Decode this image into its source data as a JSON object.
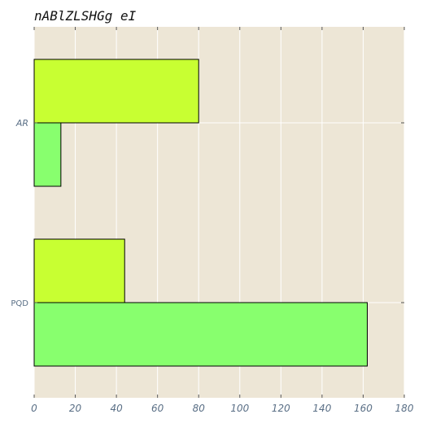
{
  "chart_data": {
    "type": "bar",
    "orientation": "horizontal",
    "title": "nABlZLSHGg eI",
    "categories": [
      "PQD",
      "AR"
    ],
    "series": [
      {
        "values": [
          162,
          13
        ],
        "color": "#88ff6e"
      },
      {
        "values": [
          44,
          80
        ],
        "color": "#c8ff32"
      }
    ],
    "xlim": [
      0,
      180
    ],
    "xticks": [
      0,
      20,
      40,
      60,
      80,
      100,
      120,
      140,
      160,
      180
    ],
    "grid": true,
    "legend": "none",
    "background_color": "#ede6d6",
    "grid_color": "#ffffff"
  }
}
